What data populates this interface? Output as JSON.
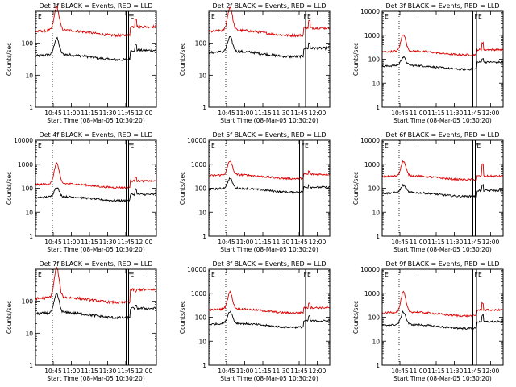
{
  "figure": {
    "xlabel": "Start Time (08-Mar-05 10:30:20)",
    "ylabel": "Counts/sec",
    "marker_label_left": "E",
    "marker_label_right": "F",
    "marker_label_right2": "E"
  },
  "chart_data": [
    {
      "type": "line",
      "title": "Det 1f BLACK = Events, RED = LLD",
      "x_unit": "minutes since 10:30:20",
      "xlim": [
        0,
        100
      ],
      "xtick_labels": [
        "10:45",
        "11:00",
        "11:15",
        "11:30",
        "11:45",
        "12:00"
      ],
      "xtick_values": [
        14.67,
        29.67,
        44.67,
        59.67,
        74.67,
        89.67
      ],
      "ylim": [
        1,
        1000
      ],
      "yscale": "log",
      "ytick_labels": [
        "1",
        "10",
        "100"
      ],
      "ytick_values": [
        1,
        10,
        100
      ],
      "vlines_dotted": [
        14
      ],
      "vlines_solid": [
        75,
        77
      ],
      "series": [
        {
          "name": "Events",
          "color": "#000000",
          "baseline": 40,
          "peak": 130,
          "end": 60,
          "spike": 90
        },
        {
          "name": "LLD",
          "color": "#dd0000",
          "baseline": 230,
          "peak": 1200,
          "end": 330,
          "spike": 600
        }
      ]
    },
    {
      "type": "line",
      "title": "Det 2f BLACK = Events, RED = LLD",
      "x_unit": "minutes since 10:30:20",
      "xlim": [
        0,
        100
      ],
      "xtick_labels": [
        "10:45",
        "11:00",
        "11:15",
        "11:30",
        "11:45",
        "12:00"
      ],
      "xtick_values": [
        14.67,
        29.67,
        44.67,
        59.67,
        74.67,
        89.67
      ],
      "ylim": [
        1,
        1000
      ],
      "yscale": "log",
      "ytick_labels": [
        "1",
        "10",
        "100"
      ],
      "ytick_values": [
        1,
        10,
        100
      ],
      "vlines_dotted": [
        14
      ],
      "vlines_solid": [
        77,
        80
      ],
      "series": [
        {
          "name": "Events",
          "color": "#000000",
          "baseline": 50,
          "peak": 140,
          "end": 70,
          "spike": 100
        },
        {
          "name": "LLD",
          "color": "#dd0000",
          "baseline": 230,
          "peak": 1200,
          "end": 300,
          "spike": 500
        }
      ]
    },
    {
      "type": "line",
      "title": "Det 3f BLACK = Events, RED = LLD",
      "x_unit": "minutes since 10:30:20",
      "xlim": [
        0,
        100
      ],
      "xtick_labels": [
        "10:45",
        "11:00",
        "11:15",
        "11:30",
        "11:45",
        "12:00"
      ],
      "xtick_values": [
        14.67,
        29.67,
        44.67,
        59.67,
        74.67,
        89.67
      ],
      "ylim": [
        1,
        10000
      ],
      "yscale": "log",
      "ytick_labels": [
        "1",
        "10",
        "100",
        "1000",
        "10000"
      ],
      "ytick_values": [
        1,
        10,
        100,
        1000,
        10000
      ],
      "vlines_dotted": [
        14
      ],
      "vlines_solid": [
        75,
        78
      ],
      "series": [
        {
          "name": "Events",
          "color": "#000000",
          "baseline": 50,
          "peak": 110,
          "end": 75,
          "spike": 110
        },
        {
          "name": "LLD",
          "color": "#dd0000",
          "baseline": 200,
          "peak": 1000,
          "end": 250,
          "spike": 500
        }
      ]
    },
    {
      "type": "line",
      "title": "Det 4f BLACK = Events, RED = LLD",
      "x_unit": "minutes since 10:30:20",
      "xlim": [
        0,
        100
      ],
      "xtick_labels": [
        "10:45",
        "11:00",
        "11:15",
        "11:30",
        "11:45",
        "12:00"
      ],
      "xtick_values": [
        14.67,
        29.67,
        44.67,
        59.67,
        74.67,
        89.67
      ],
      "ylim": [
        1,
        10000
      ],
      "yscale": "log",
      "ytick_labels": [
        "1",
        "10",
        "100",
        "1000",
        "10000"
      ],
      "ytick_values": [
        1,
        10,
        100,
        1000,
        10000
      ],
      "vlines_dotted": [
        14
      ],
      "vlines_solid": [
        75,
        77
      ],
      "series": [
        {
          "name": "Events",
          "color": "#000000",
          "baseline": 40,
          "peak": 100,
          "end": 55,
          "spike": 90
        },
        {
          "name": "LLD",
          "color": "#dd0000",
          "baseline": 140,
          "peak": 1000,
          "end": 200,
          "spike": 300
        }
      ]
    },
    {
      "type": "line",
      "title": "Det 5f BLACK = Events, RED = LLD",
      "x_unit": "minutes since 10:30:20",
      "xlim": [
        0,
        100
      ],
      "xtick_labels": [
        "10:45",
        "11:00",
        "11:15",
        "11:30",
        "11:45",
        "12:00"
      ],
      "xtick_values": [
        14.67,
        29.67,
        44.67,
        59.67,
        74.67,
        89.67
      ],
      "ylim": [
        1,
        10000
      ],
      "yscale": "log",
      "ytick_labels": [
        "1",
        "10",
        "100",
        "1000",
        "10000"
      ],
      "ytick_values": [
        1,
        10,
        100,
        1000,
        10000
      ],
      "vlines_dotted": [
        14
      ],
      "vlines_solid": [
        75,
        78
      ],
      "series": [
        {
          "name": "Events",
          "color": "#000000",
          "baseline": 90,
          "peak": 230,
          "end": 110,
          "spike": 140
        },
        {
          "name": "LLD",
          "color": "#dd0000",
          "baseline": 330,
          "peak": 1200,
          "end": 380,
          "spike": 500
        }
      ]
    },
    {
      "type": "line",
      "title": "Det 6f BLACK = Events, RED = LLD",
      "x_unit": "minutes since 10:30:20",
      "xlim": [
        0,
        100
      ],
      "xtick_labels": [
        "10:45",
        "11:00",
        "11:15",
        "11:30",
        "11:45",
        "12:00"
      ],
      "xtick_values": [
        14.67,
        29.67,
        44.67,
        59.67,
        74.67,
        89.67
      ],
      "ylim": [
        1,
        10000
      ],
      "yscale": "log",
      "ytick_labels": [
        "1",
        "10",
        "100",
        "1000",
        "10000"
      ],
      "ytick_values": [
        1,
        10,
        100,
        1000,
        10000
      ],
      "vlines_dotted": [
        14
      ],
      "vlines_solid": [
        75,
        77
      ],
      "series": [
        {
          "name": "Events",
          "color": "#000000",
          "baseline": 60,
          "peak": 120,
          "end": 80,
          "spike": 130
        },
        {
          "name": "LLD",
          "color": "#dd0000",
          "baseline": 300,
          "peak": 1200,
          "end": 320,
          "spike": 1000
        }
      ]
    },
    {
      "type": "line",
      "title": "Det 7f BLACK = Events, RED = LLD",
      "x_unit": "minutes since 10:30:20",
      "xlim": [
        0,
        100
      ],
      "xtick_labels": [
        "10:45",
        "11:00",
        "11:15",
        "11:30",
        "11:45",
        "12:00"
      ],
      "xtick_values": [
        14.67,
        29.67,
        44.67,
        59.67,
        74.67,
        89.67
      ],
      "ylim": [
        1,
        1000
      ],
      "yscale": "log",
      "ytick_labels": [
        "1",
        "10",
        "100"
      ],
      "ytick_values": [
        1,
        10,
        100
      ],
      "vlines_dotted": [
        14
      ],
      "vlines_solid": [
        75,
        77
      ],
      "series": [
        {
          "name": "Events",
          "color": "#000000",
          "baseline": 40,
          "peak": 150,
          "end": 60,
          "spike": 70
        },
        {
          "name": "LLD",
          "color": "#dd0000",
          "baseline": 120,
          "peak": 1000,
          "end": 230,
          "spike": 200
        }
      ]
    },
    {
      "type": "line",
      "title": "Det 8f BLACK = Events, RED = LLD",
      "x_unit": "minutes since 10:30:20",
      "xlim": [
        0,
        100
      ],
      "xtick_labels": [
        "10:45",
        "11:00",
        "11:15",
        "11:30",
        "11:45",
        "12:00"
      ],
      "xtick_values": [
        14.67,
        29.67,
        44.67,
        59.67,
        74.67,
        89.67
      ],
      "ylim": [
        1,
        10000
      ],
      "yscale": "log",
      "ytick_labels": [
        "1",
        "10",
        "100",
        "1000",
        "10000"
      ],
      "ytick_values": [
        1,
        10,
        100,
        1000,
        10000
      ],
      "vlines_dotted": [
        14
      ],
      "vlines_solid": [
        77,
        80
      ],
      "series": [
        {
          "name": "Events",
          "color": "#000000",
          "baseline": 50,
          "peak": 160,
          "end": 70,
          "spike": 110
        },
        {
          "name": "LLD",
          "color": "#dd0000",
          "baseline": 200,
          "peak": 1000,
          "end": 250,
          "spike": 400
        }
      ]
    },
    {
      "type": "line",
      "title": "Det 9f BLACK = Events, RED = LLD",
      "x_unit": "minutes since 10:30:20",
      "xlim": [
        0,
        100
      ],
      "xtick_labels": [
        "10:45",
        "11:00",
        "11:15",
        "11:30",
        "11:45",
        "12:00"
      ],
      "xtick_values": [
        14.67,
        29.67,
        44.67,
        59.67,
        74.67,
        89.67
      ],
      "ylim": [
        1,
        10000
      ],
      "yscale": "log",
      "ytick_labels": [
        "1",
        "10",
        "100",
        "1000",
        "10000"
      ],
      "ytick_values": [
        1,
        10,
        100,
        1000,
        10000
      ],
      "vlines_dotted": [
        14
      ],
      "vlines_solid": [
        75,
        78
      ],
      "series": [
        {
          "name": "Events",
          "color": "#000000",
          "baseline": 45,
          "peak": 150,
          "end": 65,
          "spike": 120
        },
        {
          "name": "LLD",
          "color": "#dd0000",
          "baseline": 150,
          "peak": 1000,
          "end": 200,
          "spike": 400
        }
      ]
    }
  ]
}
